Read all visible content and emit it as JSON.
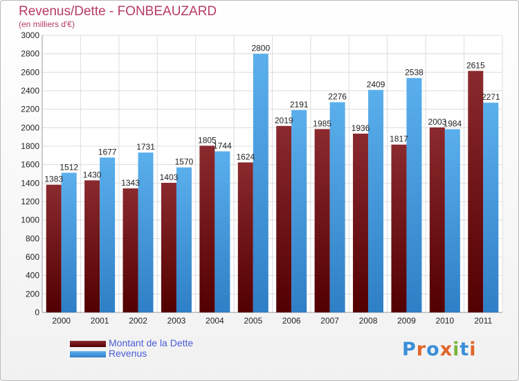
{
  "title": "Revenus/Dette - FONBEAUZARD",
  "subtitle": "(en milliers d'€)",
  "logo": "Proxiti",
  "chart_data": {
    "type": "bar",
    "title": "Revenus/Dette - FONBEAUZARD",
    "subtitle": "(en milliers d'€)",
    "categories": [
      "2000",
      "2001",
      "2002",
      "2003",
      "2004",
      "2005",
      "2006",
      "2007",
      "2008",
      "2009",
      "2010",
      "2011"
    ],
    "series": [
      {
        "name": "Montant de la Dette",
        "color": "#7a0f12",
        "values": [
          1383,
          1430,
          1343,
          1403,
          1805,
          1624,
          2019,
          1985,
          1936,
          1817,
          2003,
          2615
        ]
      },
      {
        "name": "Revenus",
        "color": "#4aa3e6",
        "values": [
          1512,
          1677,
          1731,
          1570,
          1744,
          2800,
          2191,
          2276,
          2409,
          2538,
          1984,
          2271
        ]
      }
    ],
    "ylim": [
      0,
      3000
    ],
    "yticks": [
      0,
      200,
      400,
      600,
      800,
      1000,
      1200,
      1400,
      1600,
      1800,
      2000,
      2200,
      2400,
      2600,
      2800,
      3000
    ],
    "grid": true,
    "legend_position": "bottom-left"
  }
}
